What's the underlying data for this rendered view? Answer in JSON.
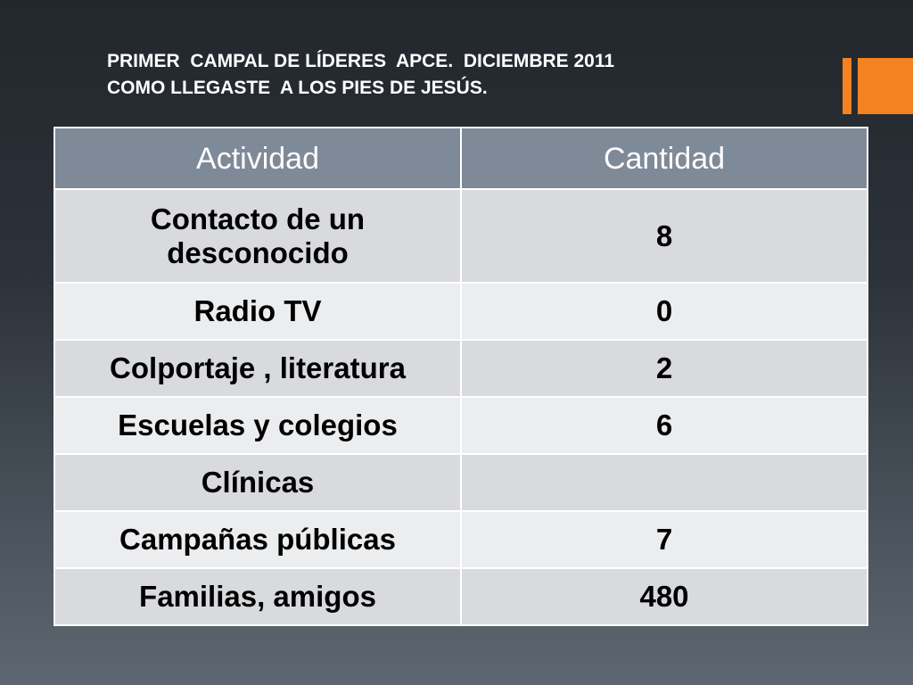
{
  "header": {
    "title_lines": [
      "PRIMER  CAMPAL DE LÍDERES  APCE.  DICIEMBRE 2011",
      "COMO LLEGASTE  A LOS PIES DE JESÚS."
    ]
  },
  "table": {
    "columns": [
      "Actividad",
      "Cantidad"
    ],
    "rows": [
      [
        "Contacto de un desconocido",
        8
      ],
      [
        "Radio TV",
        0
      ],
      [
        "Colportaje , literatura",
        2
      ],
      [
        "Escuelas y colegios",
        6
      ],
      [
        "Clínicas",
        null
      ],
      [
        "Campañas públicas",
        7
      ],
      [
        "Familias, amigos",
        480
      ]
    ]
  }
}
